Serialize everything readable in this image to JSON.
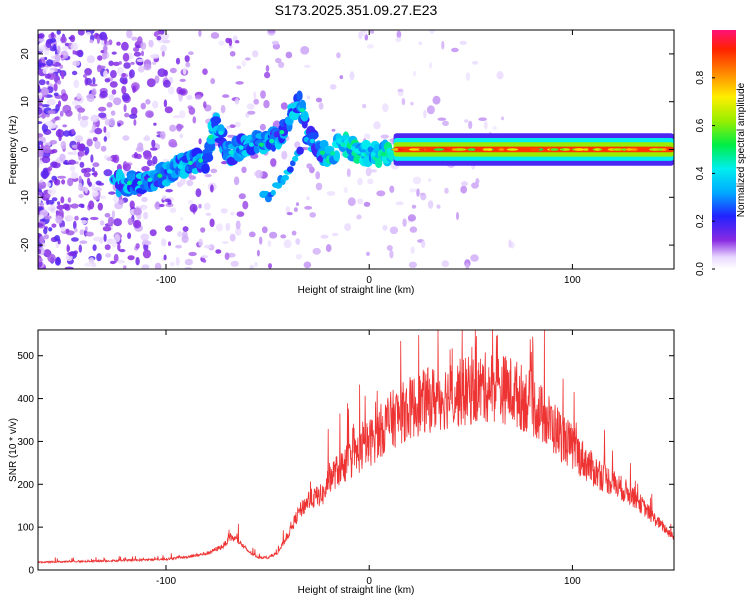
{
  "title": "S173.2025.351.09.27.E23",
  "chart_data": [
    {
      "type": "heatmap",
      "title": "",
      "xlabel": "Height of straight line (km)",
      "ylabel": "Frequency (Hz)",
      "xlim": [
        -163,
        150
      ],
      "ylim": [
        -25,
        25
      ],
      "xticks": [
        -100,
        0,
        100
      ],
      "yticks": [
        -20,
        -10,
        0,
        10,
        20
      ],
      "xtick_labels": [
        "-100",
        "0",
        "100"
      ],
      "ytick_labels": [
        "-20",
        "-10",
        "0",
        "10",
        "20"
      ],
      "colorbar": {
        "label": "Normalized spectral amplitude",
        "range": [
          0,
          1
        ],
        "ticks": [
          0,
          0.2,
          0.4,
          0.6,
          0.8
        ],
        "tick_labels": [
          "0.0",
          "0.2",
          "0.4",
          "0.6",
          "0.8"
        ]
      },
      "trace": [
        {
          "x": -122,
          "y": -7
        },
        {
          "x": -112,
          "y": -7
        },
        {
          "x": -100,
          "y": -5
        },
        {
          "x": -90,
          "y": -3
        },
        {
          "x": -80,
          "y": -2
        },
        {
          "x": -77,
          "y": 5
        },
        {
          "x": -74,
          "y": 5
        },
        {
          "x": -70,
          "y": -1
        },
        {
          "x": -60,
          "y": 1
        },
        {
          "x": -50,
          "y": 1
        },
        {
          "x": -42,
          "y": 4
        },
        {
          "x": -36,
          "y": 9
        },
        {
          "x": -34,
          "y": 10
        },
        {
          "x": -30,
          "y": 3
        },
        {
          "x": -25,
          "y": 0
        },
        {
          "x": -22,
          "y": -1
        },
        {
          "x": -20,
          "y": -2
        },
        {
          "x": -15,
          "y": 1
        },
        {
          "x": -10,
          "y": 1
        },
        {
          "x": -5,
          "y": -1
        },
        {
          "x": 0,
          "y": -1
        },
        {
          "x": 5,
          "y": -1
        },
        {
          "x": 10,
          "y": -1
        },
        {
          "x": 12,
          "y": 0
        },
        {
          "x": 150,
          "y": 0
        }
      ],
      "secondary_trace": [
        {
          "x": -50,
          "y": -10
        },
        {
          "x": -45,
          "y": -7
        },
        {
          "x": -40,
          "y": -5
        },
        {
          "x": -37,
          "y": -2
        },
        {
          "x": -34,
          "y": 0
        }
      ]
    },
    {
      "type": "line",
      "title": "",
      "xlabel": "Height of straight line (km)",
      "ylabel": "SNR (10 * v/v)",
      "xlim": [
        -163,
        150
      ],
      "ylim": [
        0,
        560
      ],
      "xticks": [
        -100,
        0,
        100
      ],
      "yticks": [
        0,
        100,
        200,
        300,
        400,
        500
      ],
      "xtick_labels": [
        "-100",
        "0",
        "100"
      ],
      "ytick_labels": [
        "0",
        "100",
        "200",
        "300",
        "400",
        "500"
      ],
      "series": [
        {
          "name": "SNR",
          "color": "#ee3333",
          "x": [
            -163,
            -140,
            -120,
            -100,
            -90,
            -80,
            -72,
            -68,
            -65,
            -60,
            -55,
            -50,
            -45,
            -40,
            -35,
            -30,
            -25,
            -22,
            -20,
            -15,
            -10,
            -5,
            0,
            10,
            20,
            30,
            40,
            50,
            60,
            70,
            80,
            90,
            100,
            110,
            120,
            130,
            140,
            150
          ],
          "values": [
            18,
            20,
            22,
            25,
            30,
            38,
            55,
            75,
            70,
            45,
            30,
            28,
            40,
            80,
            130,
            160,
            170,
            175,
            210,
            230,
            250,
            270,
            290,
            340,
            370,
            390,
            400,
            410,
            420,
            410,
            380,
            330,
            280,
            230,
            200,
            170,
            120,
            75
          ]
        }
      ]
    }
  ]
}
